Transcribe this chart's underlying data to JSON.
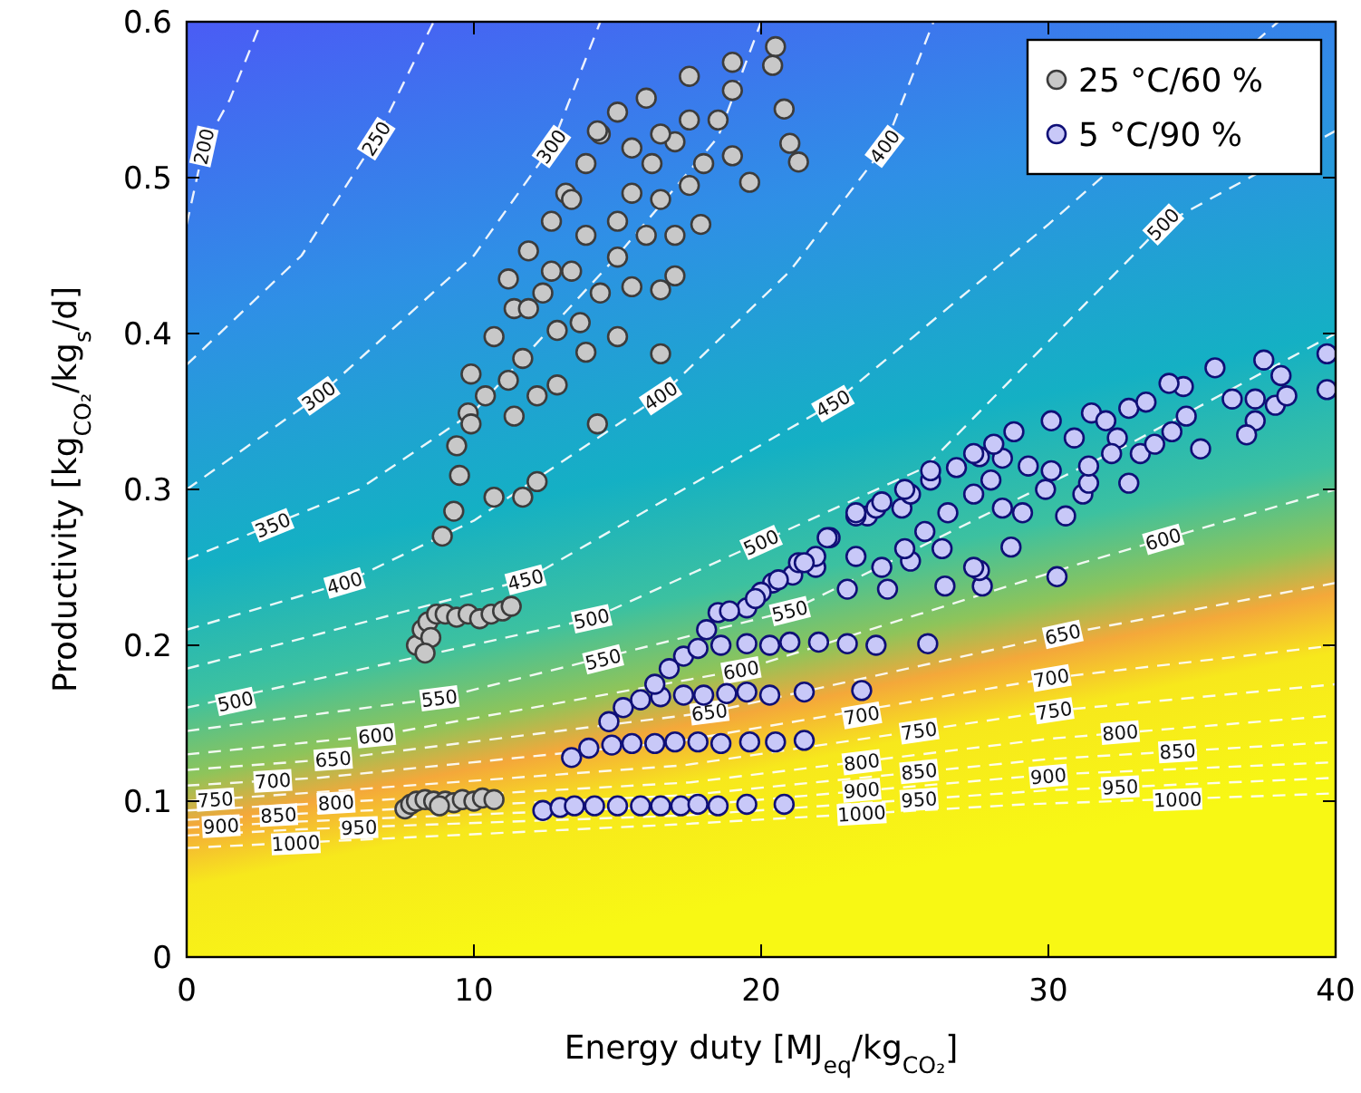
{
  "chart_data": {
    "type": "scatter",
    "xlabel": "Energy duty [MJ$_{eq}$/kg$_{CO₂}$]",
    "ylabel": "Productivity [kg$_{CO₂}$/kg$_{s}$/d]",
    "xlim": [
      0,
      40
    ],
    "ylim": [
      0,
      0.6
    ],
    "xticks": [
      0,
      10,
      20,
      30,
      40
    ],
    "yticks": [
      0,
      0.1,
      0.2,
      0.3,
      0.4,
      0.5,
      0.6
    ],
    "legend": "top right",
    "series": [
      {
        "type": "line",
        "color": "#ffffff",
        "line_style": "dashed",
        "marker": "none",
        "x": [
          0,
          0.6,
          1.5,
          2.6
        ],
        "values": [
          0.47,
          0.52,
          0.55,
          0.6
        ]
      },
      {
        "type": "line",
        "color": "#ffffff",
        "line_style": "dashed",
        "marker": "none",
        "x": [
          0,
          4,
          6.6,
          8.6
        ],
        "values": [
          0.38,
          0.45,
          0.525,
          0.6
        ]
      },
      {
        "type": "line",
        "color": "#ffffff",
        "line_style": "dashed",
        "marker": "none",
        "x": [
          0,
          4.6,
          10,
          12.7,
          14.4
        ],
        "values": [
          0.3,
          0.36,
          0.45,
          0.52,
          0.6
        ]
      },
      {
        "type": "line",
        "color": "#ffffff",
        "line_style": "dashed",
        "marker": "none",
        "x": [
          0,
          6,
          10,
          15,
          18.5,
          20
        ],
        "values": [
          0.255,
          0.3,
          0.35,
          0.45,
          0.526,
          0.6
        ]
      },
      {
        "type": "line",
        "color": "#ffffff",
        "line_style": "dashed",
        "marker": "none",
        "x": [
          0,
          5.5,
          10,
          16.5,
          21,
          24.3,
          26
        ],
        "values": [
          0.21,
          0.24,
          0.28,
          0.36,
          0.44,
          0.52,
          0.6
        ]
      },
      {
        "type": "line",
        "color": "#ffffff",
        "line_style": "dashed",
        "marker": "none",
        "x": [
          0,
          11.8,
          22.5,
          30,
          38
        ],
        "values": [
          0.185,
          0.242,
          0.355,
          0.47,
          0.6
        ]
      },
      {
        "type": "line",
        "color": "#ffffff",
        "line_style": "dashed",
        "marker": "none",
        "x": [
          0,
          14.1,
          25.7,
          34,
          40
        ],
        "values": [
          0.16,
          0.217,
          0.314,
          0.47,
          0.53
        ]
      },
      {
        "type": "line",
        "color": "#ffffff",
        "line_style": "dashed",
        "marker": "none",
        "x": [
          0,
          8.8,
          21,
          32.8,
          40
        ],
        "values": [
          0.145,
          0.166,
          0.222,
          0.329,
          0.4
        ]
      },
      {
        "type": "line",
        "color": "#ffffff",
        "line_style": "dashed",
        "marker": "none",
        "x": [
          0,
          6.6,
          19.3,
          31.2,
          40
        ],
        "values": [
          0.13,
          0.142,
          0.184,
          0.253,
          0.3
        ]
      },
      {
        "type": "line",
        "color": "#ffffff",
        "line_style": "dashed",
        "x": [
          0,
          5.1,
          18.2,
          30.5,
          40
        ],
        "values": [
          0.12,
          0.127,
          0.157,
          0.207,
          0.24
        ]
      },
      {
        "type": "line",
        "color": "#ffffff",
        "line_style": "dashed",
        "marker": "none",
        "x": [
          0,
          4.6,
          17,
          30.1,
          40
        ],
        "values": [
          0.11,
          0.115,
          0.138,
          0.179,
          0.2
        ]
      },
      {
        "type": "line",
        "color": "#ffffff",
        "line_style": "dashed",
        "marker": "none",
        "x": [
          0,
          4,
          17.3,
          30.2,
          40
        ],
        "values": [
          0.1,
          0.105,
          0.123,
          0.158,
          0.175
        ]
      },
      {
        "type": "line",
        "color": "#ffffff",
        "line_style": "dashed",
        "marker": "none",
        "x": [
          0,
          4,
          17.5,
          30,
          40
        ],
        "values": [
          0.094,
          0.098,
          0.112,
          0.14,
          0.155
        ]
      },
      {
        "type": "line",
        "color": "#ffffff",
        "line_style": "dashed",
        "marker": "none",
        "x": [
          0,
          4,
          17.5,
          30,
          40
        ],
        "values": [
          0.088,
          0.092,
          0.104,
          0.127,
          0.138
        ]
      },
      {
        "type": "line",
        "color": "#ffffff",
        "line_style": "dashed",
        "marker": "none",
        "x": [
          0,
          4,
          17.5,
          30,
          40
        ],
        "values": [
          0.083,
          0.087,
          0.097,
          0.117,
          0.125
        ]
      },
      {
        "type": "line",
        "color": "#ffffff",
        "line_style": "dashed",
        "marker": "none",
        "x": [
          0,
          4,
          17.5,
          30,
          40
        ],
        "values": [
          0.078,
          0.082,
          0.091,
          0.107,
          0.115
        ]
      },
      {
        "type": "line",
        "color": "#ffffff",
        "line_style": "dashed",
        "marker": "none",
        "x": [
          0,
          4.6,
          17,
          29.2,
          40
        ],
        "values": [
          0.07,
          0.074,
          0.085,
          0.098,
          0.105
        ]
      },
      {
        "name": "25 °C/60 %",
        "color": "#c8c8c8",
        "marker": "circle",
        "x": [
          7.6,
          7.8,
          8,
          8.3,
          8.6,
          9,
          9.3,
          9.6,
          10,
          10.3,
          10.7,
          8.8,
          8,
          8.2,
          8.4,
          8.5,
          8.7,
          9,
          9.4,
          9.8,
          10.2,
          10.6,
          11,
          11.3,
          8.3,
          8.9,
          9.3,
          9.5,
          9.4,
          9.8,
          10.4,
          9.9,
          10.7,
          11.4,
          11.2,
          11.9,
          12.7,
          13.2,
          13.9,
          14.4,
          15,
          16,
          17.5,
          19,
          20.5,
          20.4,
          20.8,
          21,
          21.3,
          19.6,
          17.9,
          17,
          16.5,
          16.5,
          15,
          14.3,
          12.2,
          11.7,
          10.7,
          12.9,
          12.2,
          11.4,
          9.9,
          12.4,
          13.4,
          13.9,
          15,
          15.5,
          16.2,
          17,
          17.5,
          18.5,
          19,
          17.5,
          16.5,
          16,
          15,
          14.4,
          13.7,
          12.9,
          11.7,
          11.2,
          13.9,
          15.5,
          17,
          18,
          19,
          16.5,
          15.5,
          14.3,
          12.7,
          11.9,
          13.4
        ],
        "values": [
          0.095,
          0.098,
          0.1,
          0.101,
          0.1,
          0.1,
          0.099,
          0.101,
          0.1,
          0.102,
          0.101,
          0.097,
          0.2,
          0.21,
          0.215,
          0.205,
          0.22,
          0.22,
          0.218,
          0.22,
          0.217,
          0.22,
          0.222,
          0.225,
          0.195,
          0.27,
          0.286,
          0.309,
          0.328,
          0.349,
          0.36,
          0.374,
          0.398,
          0.416,
          0.435,
          0.453,
          0.472,
          0.49,
          0.509,
          0.528,
          0.542,
          0.551,
          0.565,
          0.574,
          0.584,
          0.572,
          0.544,
          0.522,
          0.51,
          0.497,
          0.47,
          0.437,
          0.428,
          0.387,
          0.398,
          0.342,
          0.305,
          0.295,
          0.295,
          0.367,
          0.36,
          0.347,
          0.342,
          0.426,
          0.44,
          0.463,
          0.472,
          0.49,
          0.509,
          0.523,
          0.537,
          0.537,
          0.556,
          0.495,
          0.486,
          0.463,
          0.449,
          0.426,
          0.407,
          0.402,
          0.384,
          0.37,
          0.388,
          0.43,
          0.463,
          0.509,
          0.514,
          0.528,
          0.519,
          0.53,
          0.44,
          0.416,
          0.486
        ]
      },
      {
        "name": "5 °C/90 %",
        "color": "#c8c8f8",
        "marker": "circle",
        "x": [
          12.4,
          13,
          13.5,
          14.2,
          15,
          15.8,
          16.5,
          17.2,
          17.8,
          18.5,
          19.5,
          20.8,
          13.4,
          14,
          14.8,
          15.5,
          16.3,
          17,
          17.8,
          18.6,
          19.6,
          20.5,
          21.5,
          14.7,
          15.2,
          15.8,
          16.5,
          17.3,
          18,
          18.8,
          19.5,
          20.3,
          21.5,
          23.5,
          16.3,
          16.8,
          17.3,
          17.8,
          18.6,
          19.5,
          20.3,
          21,
          22,
          23,
          24,
          25.8,
          24.4,
          26.4,
          27.7,
          30.3,
          27.6,
          26.3,
          28.7,
          25.2,
          27.4,
          20.4,
          21.9,
          23,
          23.3,
          24.2,
          25,
          22.4,
          23.7,
          24.9,
          25.7,
          26.5,
          27.4,
          28,
          28.4,
          29.1,
          29.9,
          30.6,
          31.2,
          31.4,
          30.1,
          29.3,
          28.4,
          27.6,
          26.8,
          25.9,
          25.2,
          24,
          23.3,
          21.9,
          21.1,
          19.5,
          18.5,
          20,
          21.3,
          27.4,
          28.1,
          28.8,
          30.1,
          31.5,
          32.8,
          33.4,
          32.8,
          33.2,
          33.7,
          34.3,
          34.8,
          35.3,
          34.7,
          34.2,
          36.4,
          37.2,
          37.2,
          37.9,
          38.1,
          37.5,
          35.8,
          32.4,
          32,
          30.9,
          31.4,
          32.2,
          38.3,
          36.9,
          18.1,
          18.9,
          19.8,
          20.6,
          21.5,
          22.3,
          23.3,
          24.2,
          25,
          25.9,
          39.7,
          39.7
        ],
        "values": [
          0.094,
          0.096,
          0.097,
          0.097,
          0.097,
          0.097,
          0.097,
          0.097,
          0.098,
          0.097,
          0.098,
          0.098,
          0.128,
          0.134,
          0.136,
          0.137,
          0.137,
          0.138,
          0.138,
          0.137,
          0.138,
          0.138,
          0.139,
          0.151,
          0.16,
          0.165,
          0.167,
          0.168,
          0.168,
          0.169,
          0.17,
          0.168,
          0.17,
          0.171,
          0.175,
          0.185,
          0.193,
          0.198,
          0.2,
          0.201,
          0.2,
          0.202,
          0.202,
          0.201,
          0.2,
          0.201,
          0.236,
          0.238,
          0.238,
          0.244,
          0.248,
          0.262,
          0.263,
          0.254,
          0.25,
          0.24,
          0.25,
          0.236,
          0.257,
          0.25,
          0.262,
          0.269,
          0.283,
          0.288,
          0.273,
          0.285,
          0.297,
          0.306,
          0.288,
          0.285,
          0.3,
          0.283,
          0.297,
          0.304,
          0.312,
          0.315,
          0.32,
          0.321,
          0.314,
          0.306,
          0.297,
          0.288,
          0.283,
          0.257,
          0.245,
          0.224,
          0.221,
          0.234,
          0.253,
          0.323,
          0.329,
          0.337,
          0.344,
          0.349,
          0.352,
          0.356,
          0.304,
          0.323,
          0.329,
          0.337,
          0.347,
          0.326,
          0.366,
          0.368,
          0.358,
          0.344,
          0.358,
          0.354,
          0.373,
          0.383,
          0.378,
          0.333,
          0.344,
          0.333,
          0.315,
          0.323,
          0.36,
          0.335,
          0.21,
          0.222,
          0.23,
          0.242,
          0.253,
          0.269,
          0.285,
          0.292,
          0.3,
          0.312,
          0.387,
          0.364
        ]
      }
    ],
    "annotations": [
      {
        "text": "200",
        "x": 0.6,
        "y": 0.52
      },
      {
        "text": "250",
        "x": 6.6,
        "y": 0.525
      },
      {
        "text": "300",
        "x": 12.7,
        "y": 0.52
      },
      {
        "text": "350",
        "x": 3,
        "y": 0.277
      },
      {
        "text": "400",
        "x": 24.3,
        "y": 0.52
      },
      {
        "text": "500",
        "x": 34,
        "y": 0.47
      },
      {
        "text": "300",
        "x": 4.6,
        "y": 0.36
      },
      {
        "text": "400",
        "x": 16.5,
        "y": 0.36
      },
      {
        "text": "450",
        "x": 22.5,
        "y": 0.355
      },
      {
        "text": "400",
        "x": 5.5,
        "y": 0.24
      },
      {
        "text": "450",
        "x": 11.8,
        "y": 0.242
      },
      {
        "text": "500",
        "x": 14.1,
        "y": 0.217
      },
      {
        "text": "500",
        "x": 20,
        "y": 0.266
      },
      {
        "text": "550",
        "x": 14.5,
        "y": 0.191
      },
      {
        "text": "600",
        "x": 34,
        "y": 0.268
      },
      {
        "text": "500",
        "x": 1.7,
        "y": 0.164
      },
      {
        "text": "550",
        "x": 8.8,
        "y": 0.166
      },
      {
        "text": "600",
        "x": 6.6,
        "y": 0.142
      },
      {
        "text": "650",
        "x": 5.1,
        "y": 0.127
      },
      {
        "text": "700",
        "x": 3,
        "y": 0.113
      },
      {
        "text": "750",
        "x": 1,
        "y": 0.101
      },
      {
        "text": "800",
        "x": 5.2,
        "y": 0.099
      },
      {
        "text": "850",
        "x": 3.2,
        "y": 0.091
      },
      {
        "text": "900",
        "x": 1.2,
        "y": 0.084
      },
      {
        "text": "950",
        "x": 6,
        "y": 0.083
      },
      {
        "text": "1000",
        "x": 3.8,
        "y": 0.073
      },
      {
        "text": "550",
        "x": 21,
        "y": 0.222
      },
      {
        "text": "600",
        "x": 19.3,
        "y": 0.184
      },
      {
        "text": "650",
        "x": 18.2,
        "y": 0.157
      },
      {
        "text": "700",
        "x": 23.5,
        "y": 0.155
      },
      {
        "text": "750",
        "x": 25.5,
        "y": 0.145
      },
      {
        "text": "800",
        "x": 23.5,
        "y": 0.125
      },
      {
        "text": "850",
        "x": 25.5,
        "y": 0.119
      },
      {
        "text": "900",
        "x": 23.5,
        "y": 0.107
      },
      {
        "text": "950",
        "x": 25.5,
        "y": 0.101
      },
      {
        "text": "1000",
        "x": 23.5,
        "y": 0.092
      },
      {
        "text": "650",
        "x": 30.5,
        "y": 0.207
      },
      {
        "text": "700",
        "x": 30.1,
        "y": 0.179
      },
      {
        "text": "750",
        "x": 30.2,
        "y": 0.158
      },
      {
        "text": "800",
        "x": 32.5,
        "y": 0.144
      },
      {
        "text": "850",
        "x": 34.5,
        "y": 0.132
      },
      {
        "text": "900",
        "x": 30,
        "y": 0.116
      },
      {
        "text": "950",
        "x": 32.5,
        "y": 0.109
      },
      {
        "text": "1000",
        "x": 34.5,
        "y": 0.101
      }
    ]
  }
}
